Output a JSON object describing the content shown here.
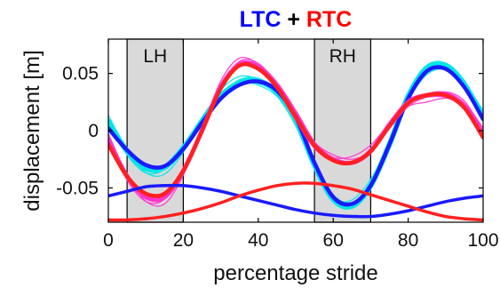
{
  "chart_data": {
    "type": "line",
    "title_parts": [
      {
        "text": "LTC",
        "color": "#0000ff"
      },
      {
        "text": " + ",
        "color": "#000000"
      },
      {
        "text": "RTC",
        "color": "#ff0000"
      }
    ],
    "xlabel": "percentage stride",
    "ylabel": "displacement [m]",
    "xlim": [
      0,
      100
    ],
    "ylim": [
      -0.08,
      0.08
    ],
    "xticks": [
      0,
      20,
      40,
      60,
      80,
      100
    ],
    "yticks": [
      {
        "value": 0.05,
        "label": "0.05"
      },
      {
        "value": 0,
        "label": "0"
      },
      {
        "value": -0.05,
        "label": "-0.05"
      }
    ],
    "grid": false,
    "shaded_regions": [
      {
        "label": "LH",
        "x": [
          5,
          20
        ],
        "color": "#d9d9d9"
      },
      {
        "label": "RH",
        "x": [
          55,
          70
        ],
        "color": "#d9d9d9"
      }
    ],
    "x": [
      0,
      5,
      10,
      15,
      20,
      25,
      30,
      35,
      40,
      45,
      50,
      55,
      60,
      65,
      70,
      75,
      80,
      85,
      90,
      95,
      100
    ],
    "series": [
      {
        "role": "LTC trials",
        "color": "#00e5e5",
        "values": [
          0.008,
          -0.018,
          -0.033,
          -0.032,
          -0.015,
          0.008,
          0.03,
          0.042,
          0.043,
          0.034,
          0.01,
          -0.03,
          -0.06,
          -0.066,
          -0.048,
          -0.012,
          0.03,
          0.055,
          0.057,
          0.04,
          0.012
        ]
      },
      {
        "role": "LTC mean",
        "color": "#1a1aff",
        "values": [
          0.002,
          -0.017,
          -0.03,
          -0.031,
          -0.016,
          0.007,
          0.028,
          0.04,
          0.043,
          0.035,
          0.012,
          -0.028,
          -0.058,
          -0.064,
          -0.048,
          -0.012,
          0.028,
          0.052,
          0.054,
          0.038,
          0.01
        ]
      },
      {
        "role": "RTC trials",
        "color": "#ff33cc",
        "values": [
          -0.008,
          -0.04,
          -0.058,
          -0.058,
          -0.035,
          0.0,
          0.038,
          0.058,
          0.056,
          0.04,
          0.015,
          -0.012,
          -0.025,
          -0.028,
          -0.018,
          0.005,
          0.025,
          0.031,
          0.032,
          0.022,
          -0.003
        ]
      },
      {
        "role": "RTC mean",
        "color": "#ff2020",
        "values": [
          -0.012,
          -0.04,
          -0.055,
          -0.055,
          -0.035,
          0.0,
          0.037,
          0.057,
          0.054,
          0.038,
          0.012,
          -0.013,
          -0.026,
          -0.028,
          -0.018,
          0.004,
          0.024,
          0.031,
          0.031,
          0.02,
          -0.006
        ]
      },
      {
        "role": "LTC low curve",
        "color": "#1a1aff",
        "values": [
          -0.057,
          -0.053,
          -0.049,
          -0.048,
          -0.048,
          -0.05,
          -0.053,
          -0.057,
          -0.061,
          -0.065,
          -0.069,
          -0.072,
          -0.074,
          -0.075,
          -0.075,
          -0.073,
          -0.07,
          -0.066,
          -0.062,
          -0.059,
          -0.057
        ]
      },
      {
        "role": "RTC low curve",
        "color": "#ff2020",
        "values": [
          -0.078,
          -0.078,
          -0.077,
          -0.075,
          -0.072,
          -0.068,
          -0.063,
          -0.057,
          -0.052,
          -0.048,
          -0.046,
          -0.046,
          -0.048,
          -0.051,
          -0.056,
          -0.061,
          -0.066,
          -0.071,
          -0.075,
          -0.077,
          -0.078
        ]
      }
    ]
  }
}
